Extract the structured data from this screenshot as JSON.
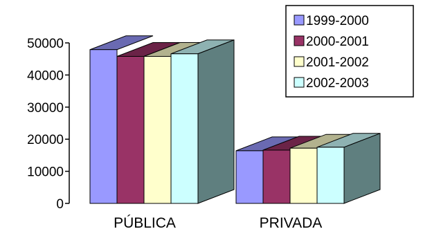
{
  "chart_data": {
    "type": "bar",
    "categories": [
      "PÚBLICA",
      "PRIVADA"
    ],
    "series": [
      {
        "name": "1999-2000",
        "values": [
          47900,
          16400
        ]
      },
      {
        "name": "2000-2001",
        "values": [
          45800,
          16600
        ]
      },
      {
        "name": "2001-2002",
        "values": [
          45800,
          17200
        ]
      },
      {
        "name": "2002-2003",
        "values": [
          46600,
          17500
        ]
      }
    ],
    "ylim": [
      0,
      50000
    ],
    "yticks": [
      0,
      10000,
      20000,
      30000,
      40000,
      50000
    ],
    "ytick_labels": [
      "0",
      "10000",
      "20000",
      "30000",
      "40000",
      "50000"
    ],
    "grid": false,
    "legend_position": "top-right",
    "style": "3d-column",
    "colors": {
      "series_front": [
        "#9999ff",
        "#993366",
        "#ffffcc",
        "#ccffff"
      ],
      "series_top": [
        "#6a6ab2",
        "#6b2347",
        "#b2b28e",
        "#8eb2b2"
      ],
      "side": "#5f7f7f",
      "outline": "#000000"
    }
  }
}
